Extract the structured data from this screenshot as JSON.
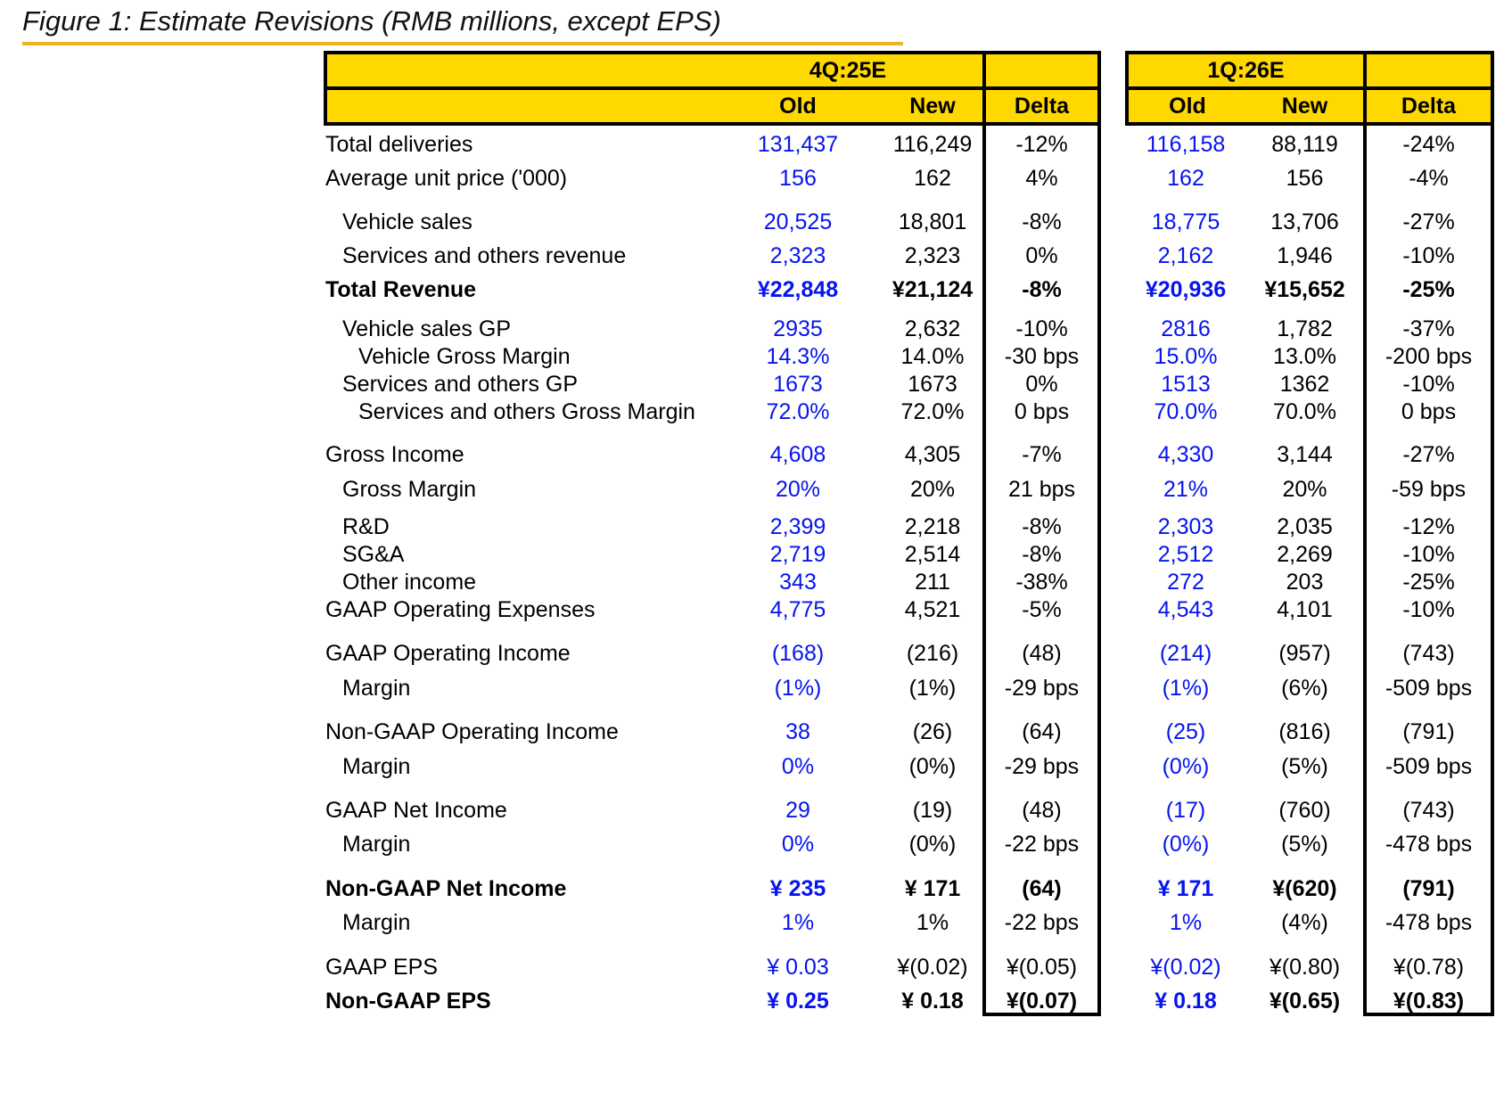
{
  "title": "Figure 1: Estimate Revisions (RMB millions, except EPS)",
  "colors": {
    "header_bg": "#FFD800",
    "title_rule": "#F0B323",
    "old_value_text": "#0614EE",
    "border": "#000000"
  },
  "header": {
    "group1": {
      "period": "4Q:25E",
      "old": "Old",
      "new": "New",
      "delta": "Delta"
    },
    "group2": {
      "period": "1Q:26E",
      "old": "Old",
      "new": "New",
      "delta": "Delta"
    }
  },
  "rows": [
    {
      "label": "Total deliveries",
      "indent": 0,
      "bold": false,
      "spacing_before": 0,
      "q4_old": "131,437",
      "q4_new": "116,249",
      "q4_delta": "-12%",
      "q1_old": "116,158",
      "q1_new": "88,119",
      "q1_delta": "-24%"
    },
    {
      "label": "Average unit price ('000)",
      "indent": 0,
      "bold": false,
      "spacing_before": 7,
      "q4_old": "156",
      "q4_new": "162",
      "q4_delta": "4%",
      "q1_old": "162",
      "q1_new": "156",
      "q1_delta": "-4%"
    },
    {
      "label": "Vehicle sales",
      "indent": 1,
      "bold": false,
      "spacing_before": 18,
      "q4_old": "20,525",
      "q4_new": "18,801",
      "q4_delta": "-8%",
      "q1_old": "18,775",
      "q1_new": "13,706",
      "q1_delta": "-27%"
    },
    {
      "label": "Services and others revenue",
      "indent": 1,
      "bold": false,
      "spacing_before": 7,
      "q4_old": "2,323",
      "q4_new": "2,323",
      "q4_delta": "0%",
      "q1_old": "2,162",
      "q1_new": "1,946",
      "q1_delta": "-10%"
    },
    {
      "label": "Total Revenue",
      "indent": 0,
      "bold": true,
      "spacing_before": 7,
      "q4_old": "¥22,848",
      "q4_new": "¥21,124",
      "q4_delta": "-8%",
      "q1_old": "¥20,936",
      "q1_new": "¥15,652",
      "q1_delta": "-25%"
    },
    {
      "label": "Vehicle sales GP",
      "indent": 1,
      "bold": false,
      "spacing_before": 13,
      "q4_old": "2935",
      "q4_new": "2,632",
      "q4_delta": "-10%",
      "q1_old": "2816",
      "q1_new": "1,782",
      "q1_delta": "-37%"
    },
    {
      "label": "Vehicle Gross Margin",
      "indent": 2,
      "bold": false,
      "spacing_before": 0,
      "q4_old": "14.3%",
      "q4_new": "14.0%",
      "q4_delta": "-30 bps",
      "q1_old": "15.0%",
      "q1_new": "13.0%",
      "q1_delta": "-200 bps"
    },
    {
      "label": "Services and others GP",
      "indent": 1,
      "bold": false,
      "spacing_before": 0,
      "q4_old": "1673",
      "q4_new": "1673",
      "q4_delta": "0%",
      "q1_old": "1513",
      "q1_new": "1362",
      "q1_delta": "-10%"
    },
    {
      "label": "Services and others Gross Margin",
      "indent": 2,
      "bold": false,
      "spacing_before": 0,
      "q4_old": "72.0%",
      "q4_new": "72.0%",
      "q4_delta": "0 bps",
      "q1_old": "70.0%",
      "q1_new": "70.0%",
      "q1_delta": "0 bps"
    },
    {
      "label": "Gross Income",
      "indent": 0,
      "bold": false,
      "spacing_before": 17,
      "q4_old": "4,608",
      "q4_new": "4,305",
      "q4_delta": "-7%",
      "q1_old": "4,330",
      "q1_new": "3,144",
      "q1_delta": "-27%"
    },
    {
      "label": "Gross Margin",
      "indent": 1,
      "bold": false,
      "spacing_before": 8,
      "q4_old": "20%",
      "q4_new": "20%",
      "q4_delta": "21 bps",
      "q1_old": "21%",
      "q1_new": "20%",
      "q1_delta": "-59 bps"
    },
    {
      "label": "R&D",
      "indent": 1,
      "bold": false,
      "spacing_before": 11,
      "q4_old": "2,399",
      "q4_new": "2,218",
      "q4_delta": "-8%",
      "q1_old": "2,303",
      "q1_new": "2,035",
      "q1_delta": "-12%"
    },
    {
      "label": "SG&A",
      "indent": 1,
      "bold": false,
      "spacing_before": 0,
      "q4_old": "2,719",
      "q4_new": "2,514",
      "q4_delta": "-8%",
      "q1_old": "2,512",
      "q1_new": "2,269",
      "q1_delta": "-10%"
    },
    {
      "label": "Other income",
      "indent": 1,
      "bold": false,
      "spacing_before": 0,
      "q4_old": "343",
      "q4_new": "211",
      "q4_delta": "-38%",
      "q1_old": "272",
      "q1_new": "203",
      "q1_delta": "-25%"
    },
    {
      "label": "GAAP Operating Expenses",
      "indent": 0,
      "bold": false,
      "spacing_before": 0,
      "q4_old": "4,775",
      "q4_new": "4,521",
      "q4_delta": "-5%",
      "q1_old": "4,543",
      "q1_new": "4,101",
      "q1_delta": "-10%"
    },
    {
      "label": "GAAP Operating Income",
      "indent": 0,
      "bold": false,
      "spacing_before": 18,
      "q4_old": "(168)",
      "q4_new": "(216)",
      "q4_delta": "(48)",
      "q1_old": "(214)",
      "q1_new": "(957)",
      "q1_delta": "(743)"
    },
    {
      "label": "Margin",
      "indent": 1,
      "bold": false,
      "spacing_before": 8,
      "q4_old": "(1%)",
      "q4_new": "(1%)",
      "q4_delta": "-29 bps",
      "q1_old": "(1%)",
      "q1_new": "(6%)",
      "q1_delta": "-509 bps"
    },
    {
      "label": "Non-GAAP Operating Income",
      "indent": 0,
      "bold": false,
      "spacing_before": 18,
      "q4_old": "38",
      "q4_new": "(26)",
      "q4_delta": "(64)",
      "q1_old": "(25)",
      "q1_new": "(816)",
      "q1_delta": "(791)"
    },
    {
      "label": "Margin",
      "indent": 1,
      "bold": false,
      "spacing_before": 8,
      "q4_old": "0%",
      "q4_new": "(0%)",
      "q4_delta": "-29 bps",
      "q1_old": "(0%)",
      "q1_new": "(5%)",
      "q1_delta": "-509 bps"
    },
    {
      "label": "GAAP Net Income",
      "indent": 0,
      "bold": false,
      "spacing_before": 18,
      "q4_old": "29",
      "q4_new": "(19)",
      "q4_delta": "(48)",
      "q1_old": "(17)",
      "q1_new": "(760)",
      "q1_delta": "(743)"
    },
    {
      "label": "Margin",
      "indent": 1,
      "bold": false,
      "spacing_before": 7,
      "q4_old": "0%",
      "q4_new": "(0%)",
      "q4_delta": "-22 bps",
      "q1_old": "(0%)",
      "q1_new": "(5%)",
      "q1_delta": "-478 bps"
    },
    {
      "label": "Non-GAAP Net Income",
      "indent": 0,
      "bold": true,
      "spacing_before": 19,
      "q4_old": "¥ 235",
      "q4_new": "¥ 171",
      "q4_delta": "(64)",
      "q1_old": "¥ 171",
      "q1_new": "¥(620)",
      "q1_delta": "(791)"
    },
    {
      "label": "Margin",
      "indent": 1,
      "bold": false,
      "spacing_before": 7,
      "q4_old": "1%",
      "q4_new": "1%",
      "q4_delta": "-22 bps",
      "q1_old": "1%",
      "q1_new": "(4%)",
      "q1_delta": "-478 bps"
    },
    {
      "label": "GAAP EPS",
      "indent": 0,
      "bold": false,
      "spacing_before": 19,
      "q4_old": "¥ 0.03",
      "q4_new": "¥(0.02)",
      "q4_delta": "¥(0.05)",
      "q1_old": "¥(0.02)",
      "q1_new": "¥(0.80)",
      "q1_delta": "¥(0.78)"
    },
    {
      "label": "Non-GAAP EPS",
      "indent": 0,
      "bold": true,
      "spacing_before": 7,
      "q4_old": "¥ 0.25",
      "q4_new": "¥ 0.18",
      "q4_delta": "¥(0.07)",
      "q1_old": "¥ 0.18",
      "q1_new": "¥(0.65)",
      "q1_delta": "¥(0.83)"
    }
  ]
}
